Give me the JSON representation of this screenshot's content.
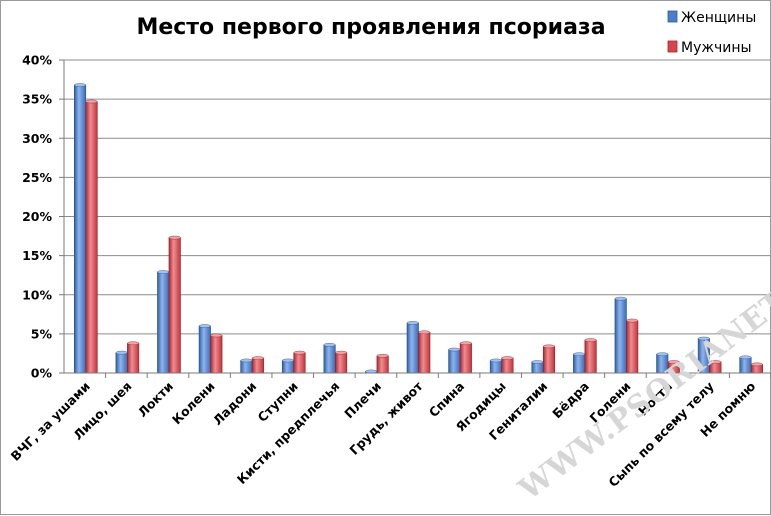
{
  "chart_data": {
    "type": "bar",
    "title": "Место первого проявления псориаза",
    "categories": [
      "ВЧГ, за ушами",
      "Лицо, шея",
      "Локти",
      "Колени",
      "Ладони",
      "Ступни",
      "Кисти, предплечья",
      "Плечи",
      "Грудь, живот",
      "Спина",
      "Ягодицы",
      "Гениталии",
      "Бёдра",
      "Голени",
      "Ногти",
      "Сыпь по всему телу",
      "Не помню"
    ],
    "series": [
      {
        "name": "Женщины",
        "color": "#4a7ec8",
        "values": [
          36.8,
          2.6,
          12.9,
          6.0,
          1.6,
          1.6,
          3.6,
          0.2,
          6.4,
          3.0,
          1.6,
          1.4,
          2.4,
          9.5,
          2.4,
          4.4,
          2.0
        ]
      },
      {
        "name": "Мужчины",
        "color": "#d9434a",
        "values": [
          34.7,
          3.8,
          17.3,
          4.8,
          1.9,
          2.6,
          2.6,
          2.2,
          5.2,
          3.8,
          1.9,
          3.4,
          4.2,
          6.7,
          1.4,
          1.4,
          1.1
        ]
      }
    ],
    "y_ticks": [
      "0%",
      "5%",
      "10%",
      "15%",
      "20%",
      "25%",
      "30%",
      "35%",
      "40%"
    ],
    "ylim": [
      0,
      40
    ],
    "grid": true,
    "legend_position": "top-right"
  },
  "watermark": "WWW.PSORIANET.ORG"
}
